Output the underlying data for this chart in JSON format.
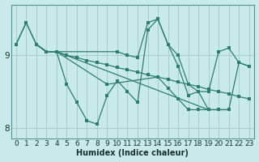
{
  "title": "",
  "xlabel": "Humidex (Indice chaleur)",
  "bg_color": "#c8eaea",
  "line_color": "#2e7d6e",
  "grid_color": "#a8cccc",
  "xlim": [
    -0.5,
    23.5
  ],
  "ylim": [
    7.85,
    9.7
  ],
  "yticks": [
    8,
    9
  ],
  "xticks": [
    0,
    1,
    2,
    3,
    4,
    5,
    6,
    7,
    8,
    9,
    10,
    11,
    12,
    13,
    14,
    15,
    16,
    17,
    18,
    19,
    20,
    21,
    22,
    23
  ],
  "lines": [
    {
      "x": [
        0,
        1,
        2,
        3,
        4,
        5,
        6,
        7,
        8,
        9,
        10,
        11,
        12,
        13,
        14,
        15,
        16,
        17,
        18,
        19,
        20,
        21,
        22,
        23
      ],
      "y": [
        9.15,
        9.45,
        9.15,
        9.05,
        9.05,
        9.0,
        8.97,
        8.93,
        8.9,
        8.87,
        8.83,
        8.8,
        8.77,
        8.73,
        8.7,
        8.67,
        8.63,
        8.6,
        8.57,
        8.53,
        8.5,
        8.47,
        8.43,
        8.4
      ]
    },
    {
      "x": [
        0,
        1,
        2,
        3,
        4,
        10,
        11,
        12,
        13,
        14,
        15,
        16,
        17,
        18,
        19,
        20,
        21,
        22,
        23
      ],
      "y": [
        9.15,
        9.45,
        9.15,
        9.05,
        9.05,
        9.05,
        9.0,
        8.97,
        9.45,
        9.5,
        9.15,
        9.0,
        8.6,
        8.5,
        8.5,
        9.05,
        9.1,
        8.9,
        8.85
      ]
    },
    {
      "x": [
        2,
        3,
        4,
        5,
        6,
        7,
        8,
        9,
        10,
        11,
        12,
        13,
        14,
        15,
        16,
        17,
        18,
        19
      ],
      "y": [
        9.15,
        9.05,
        9.05,
        8.6,
        8.35,
        8.1,
        8.05,
        8.45,
        8.65,
        8.5,
        8.35,
        9.35,
        9.5,
        9.15,
        8.85,
        8.45,
        8.5,
        8.25
      ]
    },
    {
      "x": [
        2,
        3,
        4,
        19,
        20,
        21
      ],
      "y": [
        9.15,
        9.05,
        9.05,
        8.25,
        8.25,
        8.25
      ]
    },
    {
      "x": [
        2,
        3,
        4,
        9,
        14,
        15,
        16,
        17,
        18,
        19,
        20,
        21,
        22,
        23
      ],
      "y": [
        9.15,
        9.05,
        9.05,
        8.6,
        8.7,
        8.55,
        8.4,
        8.25,
        8.25,
        8.25,
        8.25,
        8.25,
        8.9,
        8.85
      ]
    }
  ]
}
